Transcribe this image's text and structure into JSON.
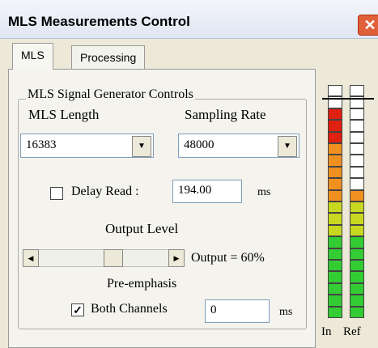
{
  "window": {
    "title": "MLS Measurements Control"
  },
  "tabs": [
    {
      "label": "MLS",
      "selected": true
    },
    {
      "label": "Processing",
      "selected": false
    }
  ],
  "group": {
    "title": "MLS Signal Generator Controls",
    "mls_length": {
      "label": "MLS Length",
      "value": "16383"
    },
    "sampling_rate": {
      "label": "Sampling Rate",
      "value": "48000"
    },
    "delay_read": {
      "label": "Delay Read :",
      "checked": false,
      "value": "194.00",
      "unit": "ms"
    },
    "output_level": {
      "label": "Output Level",
      "readout": "Output = 60%"
    },
    "pre_emphasis": {
      "label": "Pre-emphasis",
      "checkbox": "Both Channels",
      "checked": true,
      "value": "0",
      "unit": "ms"
    }
  },
  "meters": {
    "segments": 20,
    "items": [
      {
        "label": "In",
        "lit": 18
      },
      {
        "label": "Ref",
        "lit": 11
      }
    ]
  }
}
